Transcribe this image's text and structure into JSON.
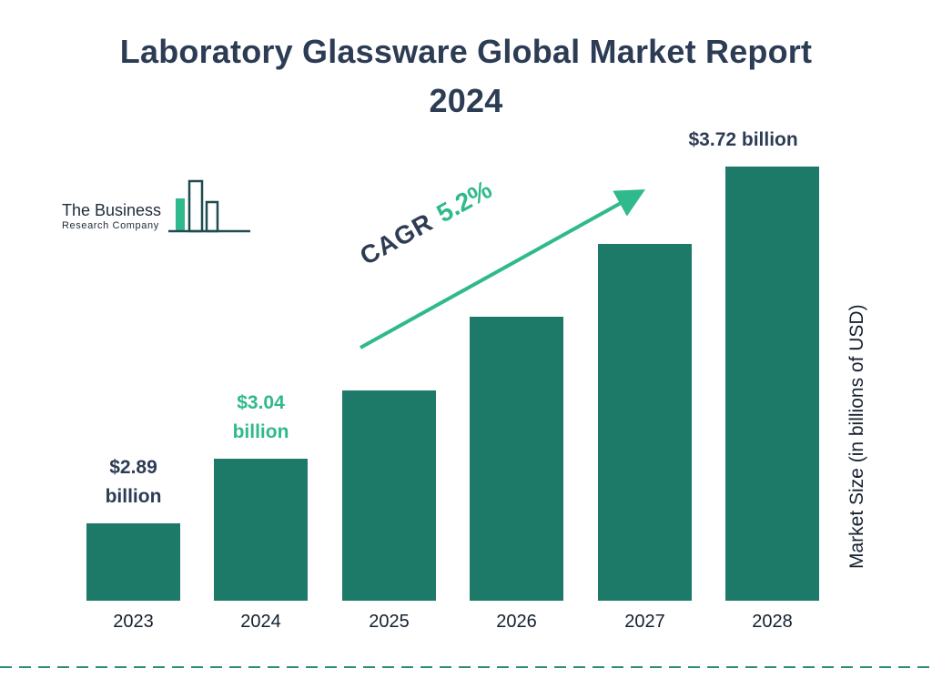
{
  "page": {
    "title_line1": "Laboratory Glassware Global Market Report",
    "title_line2": "2024"
  },
  "logo": {
    "line1": "The Business",
    "line2": "Research Company"
  },
  "chart_data": {
    "type": "bar",
    "title": "Laboratory Glassware Global Market Report 2024",
    "categories": [
      "2023",
      "2024",
      "2025",
      "2026",
      "2027",
      "2028"
    ],
    "values": [
      2.89,
      3.04,
      3.2,
      3.37,
      3.54,
      3.72
    ],
    "bar_labels": [
      "$2.89 billion",
      "$3.04 billion",
      "",
      "",
      "",
      "$3.72 billion"
    ],
    "bar_label_styles": [
      "dark",
      "green",
      "",
      "",
      "",
      "dark"
    ],
    "xlabel": "",
    "ylabel": "Market Size (in billions of USD)",
    "ylim": [
      2.71,
      3.8
    ],
    "grid": false,
    "legend_position": "none",
    "cagr_label": "CAGR",
    "cagr_value": "5.2%",
    "colors": {
      "bar": "#1E7A68",
      "accent_green": "#2FB98C",
      "dark_navy": "#2D3C55"
    }
  }
}
